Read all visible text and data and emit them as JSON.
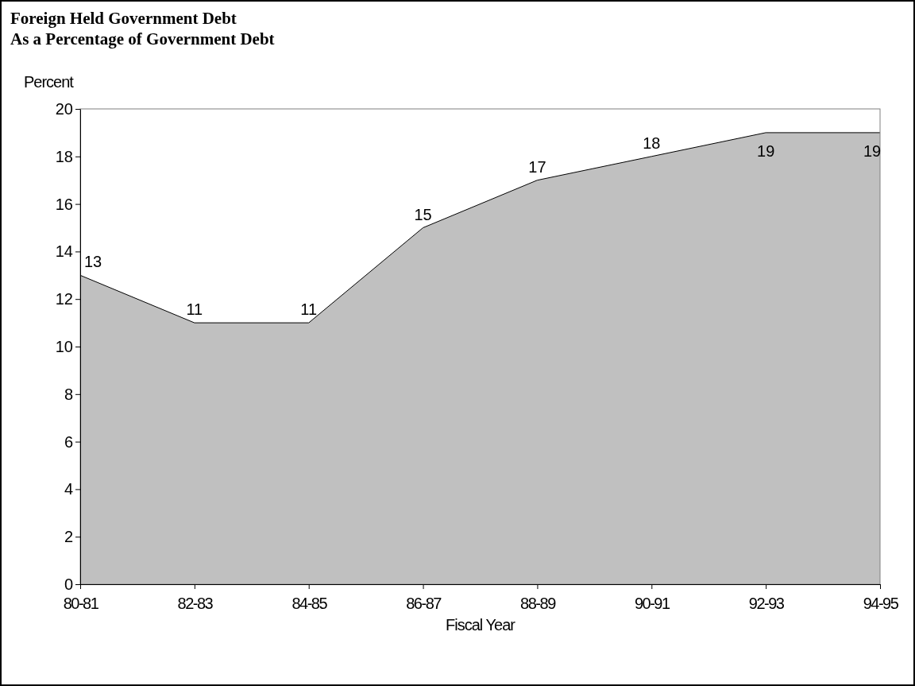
{
  "chart_data": {
    "type": "area",
    "title": "Foreign Held Government Debt\nAs a Percentage of Government Debt",
    "ylabel": "Percent",
    "xlabel": "Fiscal Year",
    "categories": [
      "80-81",
      "82-83",
      "84-85",
      "86-87",
      "88-89",
      "90-91",
      "92-93",
      "94-95"
    ],
    "series": [
      {
        "color": "#c0c0c0",
        "values": [
          13,
          11,
          11,
          15,
          17,
          18,
          19,
          19
        ]
      }
    ],
    "ylim": [
      0,
      20
    ],
    "yticks": [
      0,
      2,
      4,
      6,
      8,
      10,
      12,
      14,
      16,
      18,
      20
    ],
    "data_labels": true
  }
}
